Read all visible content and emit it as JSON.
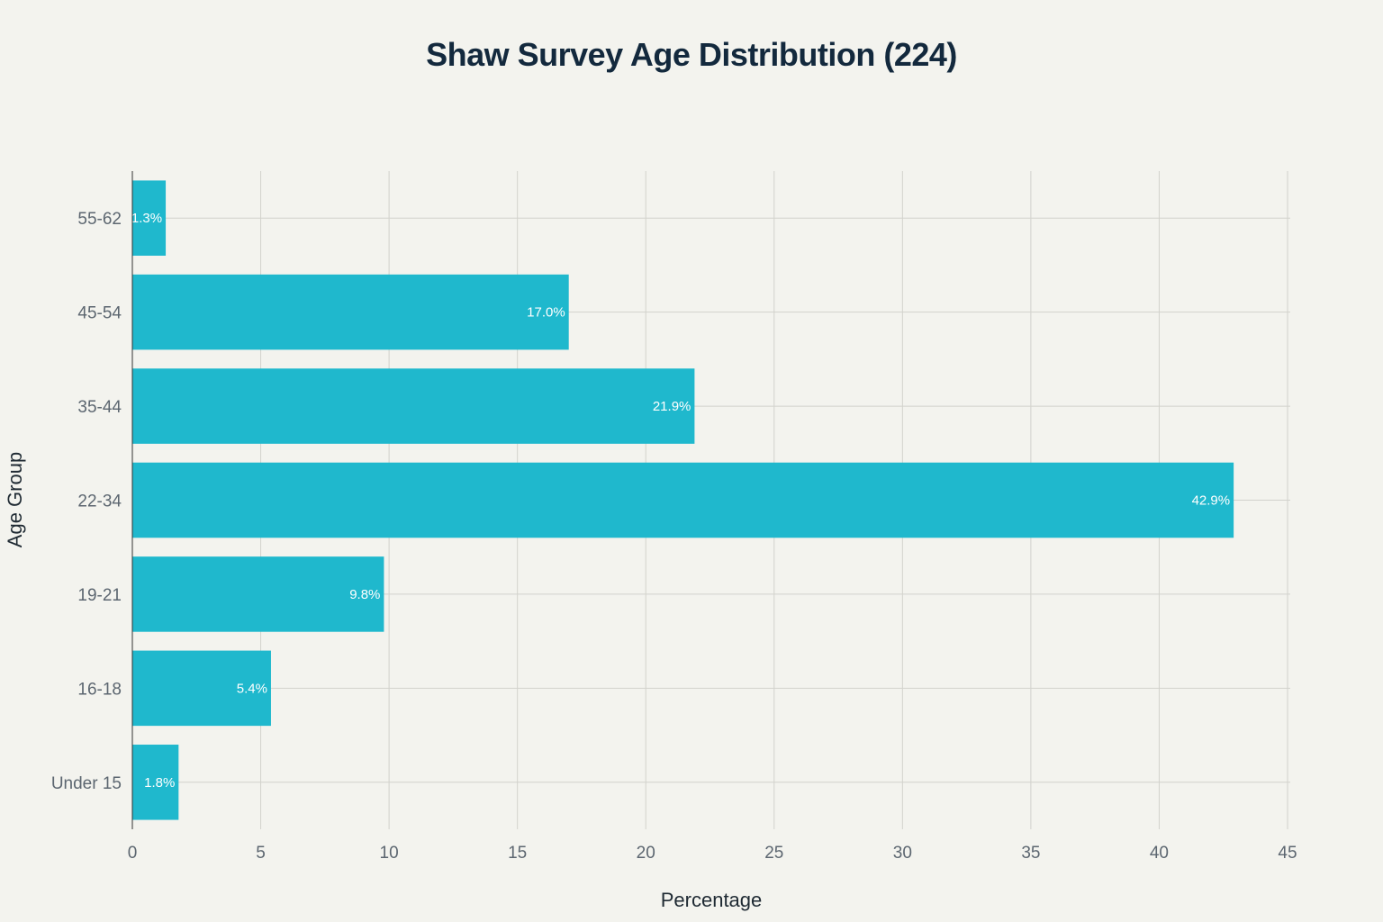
{
  "chart_data": {
    "type": "bar",
    "orientation": "horizontal",
    "title": "Shaw Survey Age Distribution (224)",
    "xlabel": "Percentage",
    "ylabel": "Age Group",
    "categories": [
      "Under 15",
      "16-18",
      "19-21",
      "22-34",
      "35-44",
      "45-54",
      "55-62"
    ],
    "values": [
      1.8,
      5.4,
      9.8,
      42.9,
      21.9,
      17.0,
      1.3
    ],
    "data_labels": [
      "1.8%",
      "5.4%",
      "9.8%",
      "42.9%",
      "21.9%",
      "17.0%",
      "1.3%"
    ],
    "xlim": [
      0,
      45
    ],
    "x_ticks": [
      "0",
      "5",
      "10",
      "15",
      "20",
      "25",
      "30",
      "35",
      "40",
      "45"
    ],
    "grid": true,
    "bar_color": "#1fb8cd"
  }
}
